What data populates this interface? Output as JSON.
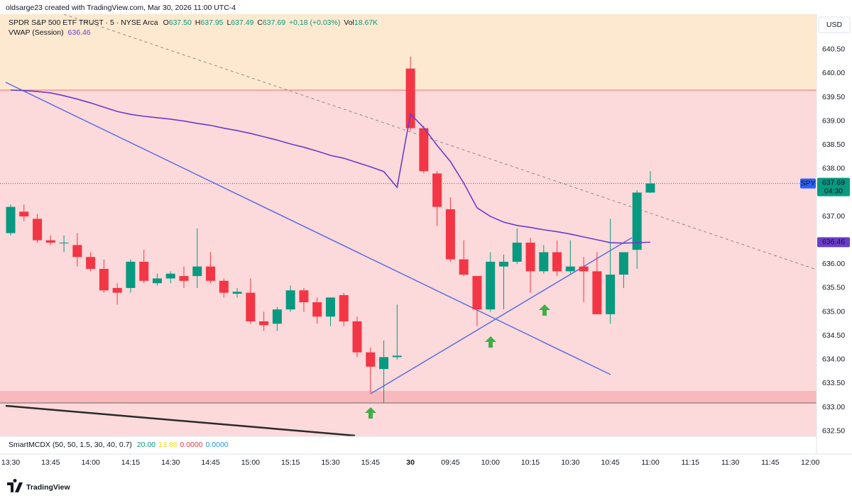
{
  "header": {
    "credit": "oldsarge23 created with TradingView.com, Mar 30, 2026 11:00 UTC-4"
  },
  "legend": {
    "symbol": "SPDR S&P 500 ETF TRUST · 5 · NYSE Arca",
    "o_label": "O",
    "o": "637.50",
    "h_label": "H",
    "h": "637.95",
    "l_label": "L",
    "l": "637.49",
    "c_label": "C",
    "c": "637.69",
    "change": "+0.18 (+0.03%)",
    "vol_label": "Vol",
    "vol": "18.67K",
    "vwap_value": "636.46"
  },
  "indicator": {
    "name": "SmartMCDX (50, 50, 1.5, 30, 40, 0.7)",
    "values": [
      "20.00",
      "13.88",
      "0.0000",
      "0.0000"
    ],
    "colors": [
      "#089981",
      "#f5d90a",
      "#f23645",
      "#2196f3"
    ]
  },
  "footer": {
    "brand": "TradingView"
  },
  "chart_data": {
    "type": "candlestick",
    "title": "SPDR S&P 500 ETF TRUST · 5 · NYSE Arca",
    "currency": "USD",
    "up_color": "#089981",
    "down_color": "#f23645",
    "categories": [
      "13:30",
      null,
      null,
      "13:45",
      null,
      null,
      "14:00",
      null,
      null,
      "14:15",
      null,
      null,
      "14:30",
      null,
      null,
      "14:45",
      null,
      null,
      "15:00",
      null,
      null,
      "15:15",
      null,
      null,
      "15:30",
      null,
      null,
      "15:45",
      null,
      null,
      "30",
      null,
      null,
      "09:45",
      null,
      null,
      "10:00",
      null,
      null,
      "10:15",
      null,
      null,
      "10:30",
      null,
      null,
      "10:45",
      null,
      null,
      "11:00",
      null,
      null,
      "11:15",
      null,
      null,
      "11:30",
      null,
      null,
      "11:45",
      null,
      null,
      "12:00"
    ],
    "open": [
      636.65,
      637.1,
      636.95,
      636.5,
      636.45,
      636.4,
      636.15,
      635.9,
      635.5,
      635.5,
      636.05,
      635.6,
      635.7,
      635.75,
      635.75,
      635.95,
      635.65,
      635.38,
      635.4,
      634.8,
      634.75,
      635.05,
      635.45,
      635.2,
      634.9,
      635.35,
      634.8,
      634.15,
      633.8,
      634.05,
      640.1,
      638.85,
      637.9,
      637.15,
      636.1,
      635.75,
      635.05,
      635.95,
      636.05,
      636.45,
      635.85,
      636.25,
      635.85,
      635.95,
      635.85,
      634.95,
      635.78,
      636.3,
      637.5,
      null,
      null,
      null,
      null,
      null,
      null,
      null,
      null,
      null,
      null,
      null,
      null
    ],
    "high": [
      637.25,
      637.25,
      637.05,
      636.6,
      636.6,
      636.65,
      636.25,
      636.1,
      635.6,
      636.1,
      636.3,
      635.8,
      635.85,
      635.95,
      636.75,
      636.25,
      635.7,
      635.5,
      635.7,
      635.0,
      635.1,
      635.55,
      635.5,
      635.3,
      635.3,
      635.4,
      634.9,
      634.25,
      634.4,
      635.15,
      640.35,
      638.9,
      637.95,
      637.4,
      636.5,
      635.75,
      636.25,
      636.2,
      636.75,
      636.55,
      636.4,
      636.5,
      636.5,
      636.15,
      636.25,
      636.95,
      636.25,
      637.55,
      637.95,
      null,
      null,
      null,
      null,
      null,
      null,
      null,
      null,
      null,
      null,
      null,
      null
    ],
    "low": [
      636.6,
      636.9,
      636.45,
      636.4,
      636.25,
      635.95,
      635.85,
      635.4,
      635.15,
      635.4,
      635.6,
      635.55,
      635.6,
      635.5,
      635.5,
      635.6,
      635.3,
      635.3,
      634.75,
      634.6,
      634.6,
      635.0,
      635.0,
      634.75,
      634.7,
      634.7,
      634.05,
      633.3,
      633.1,
      634.0,
      638.8,
      637.9,
      636.8,
      636.05,
      635.75,
      634.7,
      635.0,
      635.05,
      636.0,
      635.4,
      635.8,
      635.75,
      635.8,
      635.2,
      634.95,
      634.75,
      635.5,
      635.9,
      637.49,
      null,
      null,
      null,
      null,
      null,
      null,
      null,
      null,
      null,
      null,
      null,
      null
    ],
    "close": [
      637.2,
      637.0,
      636.5,
      636.45,
      636.45,
      636.15,
      635.9,
      635.45,
      635.4,
      636.05,
      635.65,
      635.7,
      635.8,
      635.65,
      635.95,
      635.65,
      635.4,
      635.42,
      634.8,
      634.72,
      635.05,
      635.45,
      635.2,
      634.9,
      635.3,
      634.8,
      634.15,
      633.85,
      634.05,
      634.08,
      638.85,
      637.95,
      637.2,
      636.1,
      635.78,
      635.05,
      636.05,
      636.05,
      636.45,
      635.85,
      636.25,
      635.85,
      635.95,
      635.85,
      634.95,
      635.78,
      636.25,
      637.5,
      637.69,
      null,
      null,
      null,
      null,
      null,
      null,
      null,
      null,
      null,
      null,
      null,
      null
    ],
    "series": [
      {
        "name": "VWAP (Session)",
        "color": "#6a3dc9",
        "values": [
          639.65,
          639.64,
          639.62,
          639.59,
          639.53,
          639.46,
          639.38,
          639.29,
          639.2,
          639.14,
          639.1,
          639.07,
          639.04,
          639.0,
          638.95,
          638.91,
          638.85,
          638.8,
          638.74,
          638.67,
          638.6,
          638.52,
          638.45,
          638.37,
          638.28,
          638.22,
          638.13,
          638.04,
          637.94,
          637.61,
          639.15,
          638.86,
          638.49,
          638.15,
          637.7,
          637.18,
          637.0,
          636.88,
          636.81,
          636.77,
          636.72,
          636.68,
          636.63,
          636.57,
          636.51,
          636.45,
          636.44,
          636.45,
          636.46,
          null,
          null,
          null,
          null,
          null,
          null,
          null,
          null,
          null,
          null,
          null,
          null
        ]
      }
    ],
    "ylim": [
      632.39,
      641.24
    ],
    "yticks": [
      {
        "value": 640.5,
        "label": "640.50"
      },
      {
        "value": 640,
        "label": "640.00"
      },
      {
        "value": 639.5,
        "label": "639.50"
      },
      {
        "value": 639,
        "label": "639.00"
      },
      {
        "value": 638.5,
        "label": "638.50"
      },
      {
        "value": 638,
        "label": "638.00"
      },
      {
        "value": 637.5,
        "label": "637.50"
      },
      {
        "value": 637,
        "label": "637.00"
      },
      {
        "value": 636.5,
        "label": "636.50"
      },
      {
        "value": 636,
        "label": "636.00"
      },
      {
        "value": 635.5,
        "label": "635.50"
      },
      {
        "value": 635,
        "label": "635.00"
      },
      {
        "value": 634.5,
        "label": "634.50"
      },
      {
        "value": 634,
        "label": "634.00"
      },
      {
        "value": 633.5,
        "label": "633.50"
      },
      {
        "value": 633,
        "label": "633.00"
      },
      {
        "value": 632.5,
        "label": "632.50"
      }
    ],
    "last_price": {
      "symbol": "SPY",
      "value": 637.69,
      "label": "637.69",
      "countdown": "04:30"
    },
    "vwap_tag": {
      "value": 636.46,
      "label": "636.46"
    }
  }
}
